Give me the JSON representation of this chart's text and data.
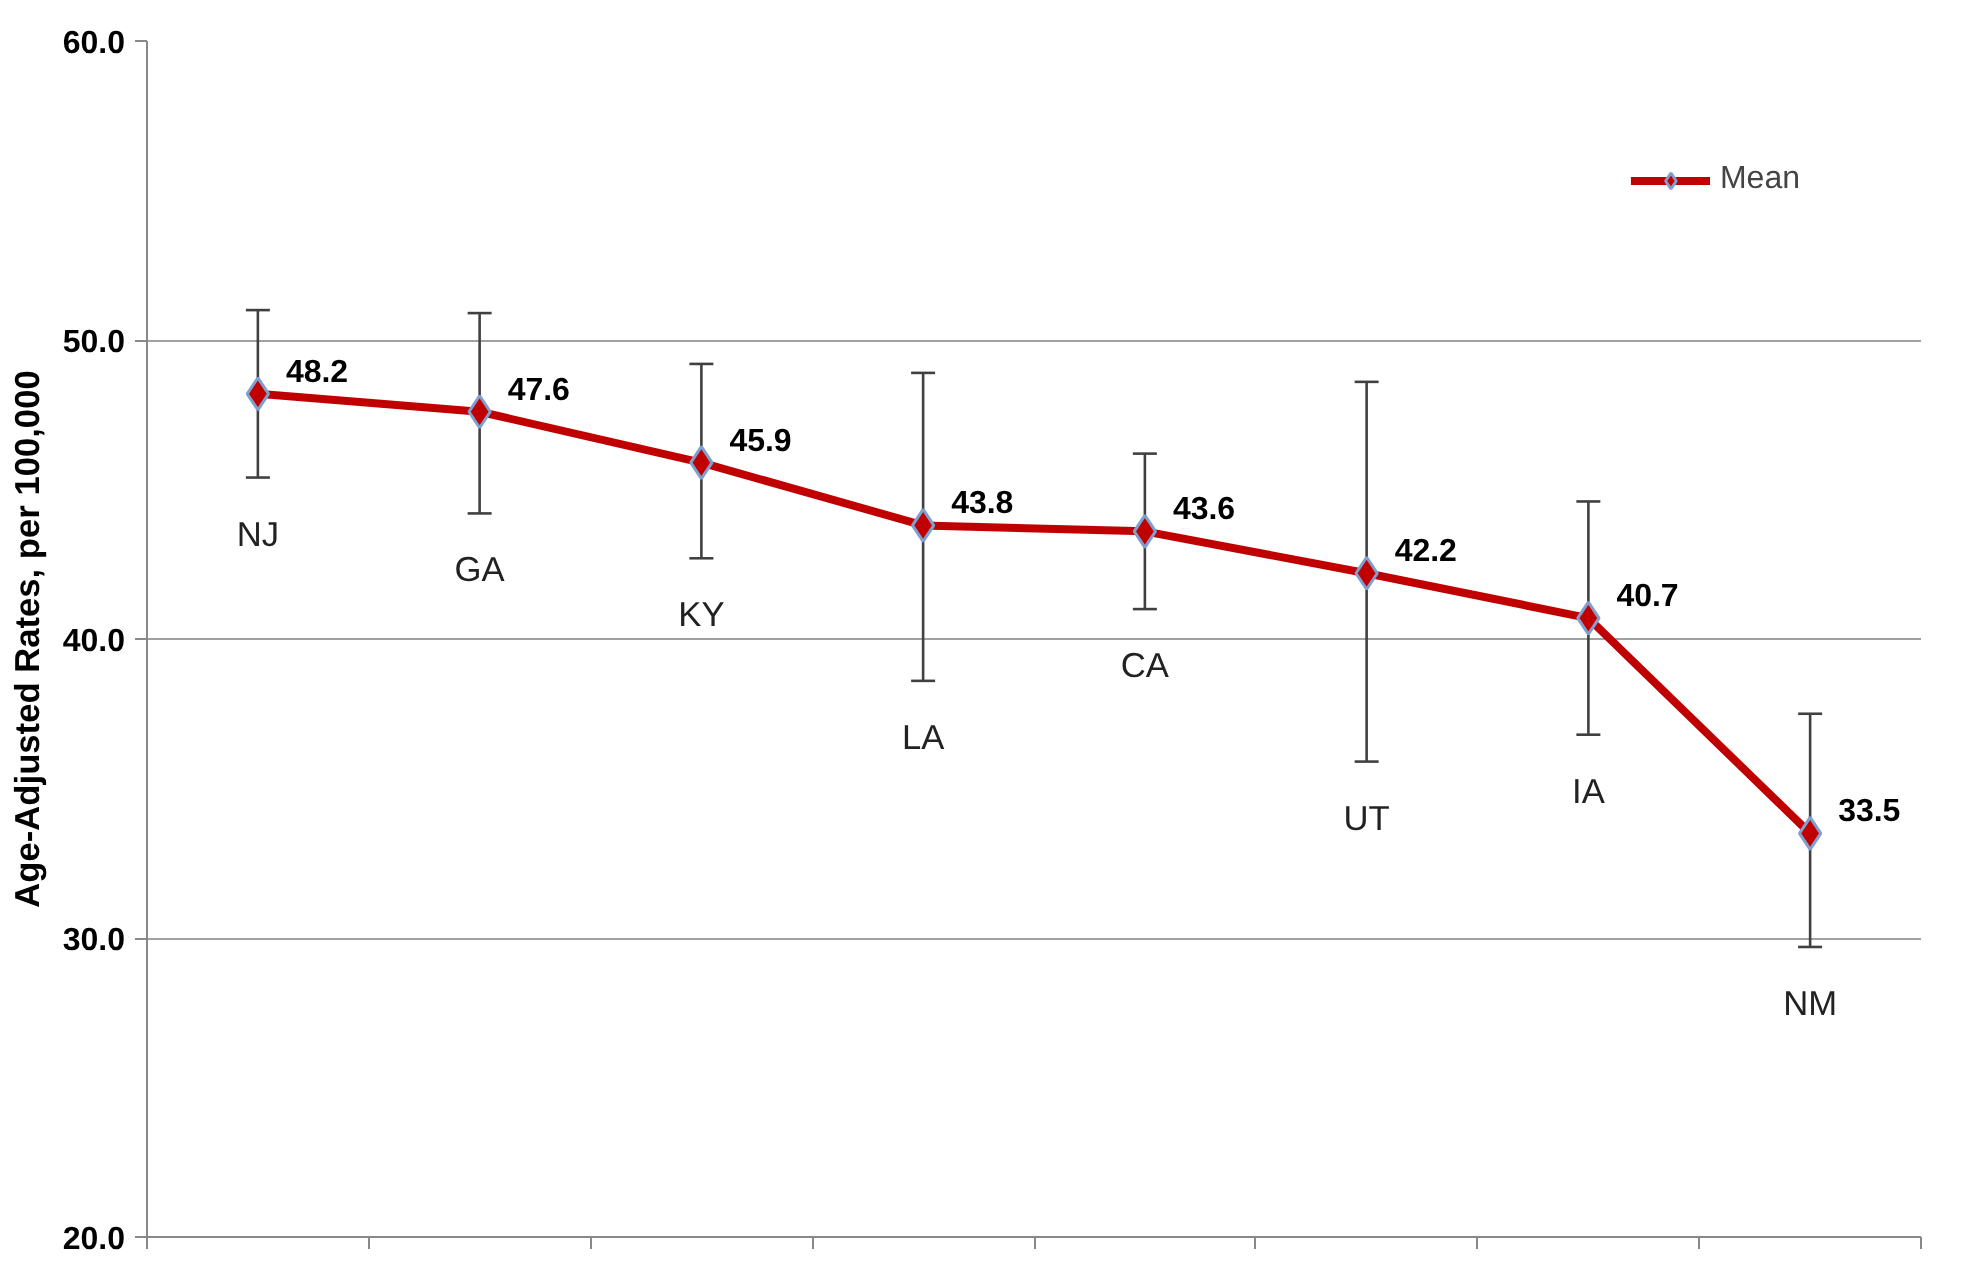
{
  "chart_data": {
    "type": "line",
    "ylabel": "Age-Adjusted Rates, per 100,000",
    "categories": [
      "NJ",
      "GA",
      "KY",
      "LA",
      "CA",
      "UT",
      "IA",
      "NM"
    ],
    "series": [
      {
        "name": "Mean",
        "color": "#c00000",
        "values": [
          48.2,
          47.6,
          45.9,
          43.8,
          43.6,
          42.2,
          40.7,
          33.5
        ],
        "errors": [
          [
            45.4,
            51.0
          ],
          [
            44.2,
            50.9
          ],
          [
            42.7,
            49.2
          ],
          [
            38.6,
            48.9
          ],
          [
            41.0,
            46.2
          ],
          [
            35.9,
            48.6
          ],
          [
            36.8,
            44.6
          ],
          [
            29.7,
            37.5
          ]
        ]
      }
    ],
    "ylim": [
      20,
      60
    ],
    "yticks": [
      {
        "value": 20,
        "label": "20.0"
      },
      {
        "value": 30,
        "label": "30.0"
      },
      {
        "value": 40,
        "label": "40.0"
      },
      {
        "value": 50,
        "label": "50.0"
      },
      {
        "value": 60,
        "label": "60.0"
      }
    ],
    "grid": "y",
    "legend": "top right",
    "marker": "diamond",
    "line_style": "solid",
    "data_labels": true
  }
}
